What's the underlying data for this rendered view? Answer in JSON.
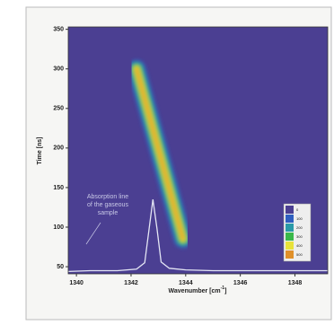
{
  "chart_data": {
    "type": "heatmap",
    "xlabel": {
      "text": "Wavenumber [cm",
      "sup": "-1",
      "end": "]"
    },
    "ylabel": "Time [ns]",
    "xlim": [
      1339.7,
      1349.2
    ],
    "xticks": [
      1340,
      1342,
      1344,
      1346,
      1348
    ],
    "ylim": [
      41,
      353
    ],
    "yticks": [
      50,
      100,
      150,
      200,
      250,
      300,
      350
    ],
    "background": "#4b3f92",
    "streak": {
      "x": [
        1342.2,
        1343.9
      ],
      "y": [
        300,
        85
      ]
    },
    "spectrum": {
      "color": "#e4e6f4",
      "x": [
        1339.7,
        1340.5,
        1341.5,
        1342.2,
        1342.5,
        1342.65,
        1342.8,
        1342.95,
        1343.1,
        1343.4,
        1344,
        1345,
        1346.5,
        1348,
        1349.2
      ],
      "y": [
        44,
        45,
        45,
        47,
        55,
        95,
        135,
        98,
        56,
        48,
        46,
        45,
        45,
        45,
        45
      ]
    },
    "annotation": [
      "Absorption line",
      "of the gaseous",
      "sample"
    ],
    "colorbar": {
      "levels": [
        0,
        100,
        200,
        300,
        400,
        500
      ],
      "colors": [
        "#4b3f92",
        "#2f5fc0",
        "#2a9aa8",
        "#3ab84a",
        "#e8e23a",
        "#e0902a"
      ]
    }
  }
}
